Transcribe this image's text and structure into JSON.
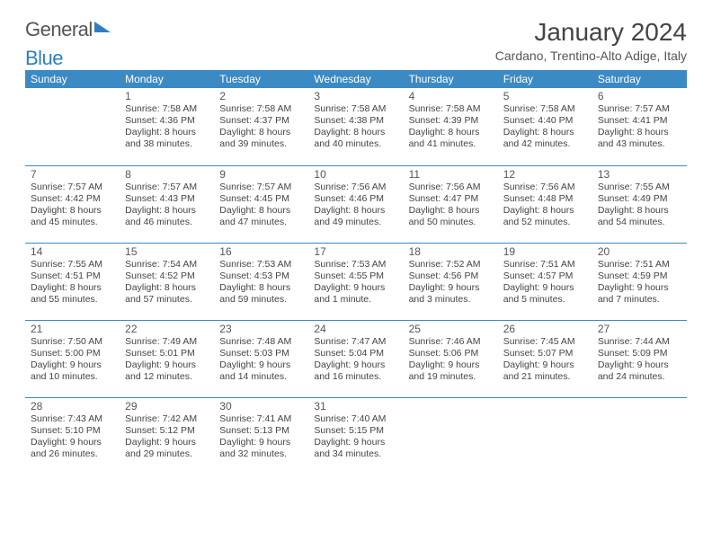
{
  "logo": {
    "part1": "General",
    "part2": "Blue"
  },
  "title": "January 2024",
  "location": "Cardano, Trentino-Alto Adige, Italy",
  "header_bg": "#3b8ac4",
  "header_fg": "#ffffff",
  "border_color": "#3b8ac4",
  "text_color": "#444444",
  "daynames": [
    "Sunday",
    "Monday",
    "Tuesday",
    "Wednesday",
    "Thursday",
    "Friday",
    "Saturday"
  ],
  "weeks": [
    [
      null,
      {
        "n": "1",
        "sr": "Sunrise: 7:58 AM",
        "ss": "Sunset: 4:36 PM",
        "d1": "Daylight: 8 hours",
        "d2": "and 38 minutes."
      },
      {
        "n": "2",
        "sr": "Sunrise: 7:58 AM",
        "ss": "Sunset: 4:37 PM",
        "d1": "Daylight: 8 hours",
        "d2": "and 39 minutes."
      },
      {
        "n": "3",
        "sr": "Sunrise: 7:58 AM",
        "ss": "Sunset: 4:38 PM",
        "d1": "Daylight: 8 hours",
        "d2": "and 40 minutes."
      },
      {
        "n": "4",
        "sr": "Sunrise: 7:58 AM",
        "ss": "Sunset: 4:39 PM",
        "d1": "Daylight: 8 hours",
        "d2": "and 41 minutes."
      },
      {
        "n": "5",
        "sr": "Sunrise: 7:58 AM",
        "ss": "Sunset: 4:40 PM",
        "d1": "Daylight: 8 hours",
        "d2": "and 42 minutes."
      },
      {
        "n": "6",
        "sr": "Sunrise: 7:57 AM",
        "ss": "Sunset: 4:41 PM",
        "d1": "Daylight: 8 hours",
        "d2": "and 43 minutes."
      }
    ],
    [
      {
        "n": "7",
        "sr": "Sunrise: 7:57 AM",
        "ss": "Sunset: 4:42 PM",
        "d1": "Daylight: 8 hours",
        "d2": "and 45 minutes."
      },
      {
        "n": "8",
        "sr": "Sunrise: 7:57 AM",
        "ss": "Sunset: 4:43 PM",
        "d1": "Daylight: 8 hours",
        "d2": "and 46 minutes."
      },
      {
        "n": "9",
        "sr": "Sunrise: 7:57 AM",
        "ss": "Sunset: 4:45 PM",
        "d1": "Daylight: 8 hours",
        "d2": "and 47 minutes."
      },
      {
        "n": "10",
        "sr": "Sunrise: 7:56 AM",
        "ss": "Sunset: 4:46 PM",
        "d1": "Daylight: 8 hours",
        "d2": "and 49 minutes."
      },
      {
        "n": "11",
        "sr": "Sunrise: 7:56 AM",
        "ss": "Sunset: 4:47 PM",
        "d1": "Daylight: 8 hours",
        "d2": "and 50 minutes."
      },
      {
        "n": "12",
        "sr": "Sunrise: 7:56 AM",
        "ss": "Sunset: 4:48 PM",
        "d1": "Daylight: 8 hours",
        "d2": "and 52 minutes."
      },
      {
        "n": "13",
        "sr": "Sunrise: 7:55 AM",
        "ss": "Sunset: 4:49 PM",
        "d1": "Daylight: 8 hours",
        "d2": "and 54 minutes."
      }
    ],
    [
      {
        "n": "14",
        "sr": "Sunrise: 7:55 AM",
        "ss": "Sunset: 4:51 PM",
        "d1": "Daylight: 8 hours",
        "d2": "and 55 minutes."
      },
      {
        "n": "15",
        "sr": "Sunrise: 7:54 AM",
        "ss": "Sunset: 4:52 PM",
        "d1": "Daylight: 8 hours",
        "d2": "and 57 minutes."
      },
      {
        "n": "16",
        "sr": "Sunrise: 7:53 AM",
        "ss": "Sunset: 4:53 PM",
        "d1": "Daylight: 8 hours",
        "d2": "and 59 minutes."
      },
      {
        "n": "17",
        "sr": "Sunrise: 7:53 AM",
        "ss": "Sunset: 4:55 PM",
        "d1": "Daylight: 9 hours",
        "d2": "and 1 minute."
      },
      {
        "n": "18",
        "sr": "Sunrise: 7:52 AM",
        "ss": "Sunset: 4:56 PM",
        "d1": "Daylight: 9 hours",
        "d2": "and 3 minutes."
      },
      {
        "n": "19",
        "sr": "Sunrise: 7:51 AM",
        "ss": "Sunset: 4:57 PM",
        "d1": "Daylight: 9 hours",
        "d2": "and 5 minutes."
      },
      {
        "n": "20",
        "sr": "Sunrise: 7:51 AM",
        "ss": "Sunset: 4:59 PM",
        "d1": "Daylight: 9 hours",
        "d2": "and 7 minutes."
      }
    ],
    [
      {
        "n": "21",
        "sr": "Sunrise: 7:50 AM",
        "ss": "Sunset: 5:00 PM",
        "d1": "Daylight: 9 hours",
        "d2": "and 10 minutes."
      },
      {
        "n": "22",
        "sr": "Sunrise: 7:49 AM",
        "ss": "Sunset: 5:01 PM",
        "d1": "Daylight: 9 hours",
        "d2": "and 12 minutes."
      },
      {
        "n": "23",
        "sr": "Sunrise: 7:48 AM",
        "ss": "Sunset: 5:03 PM",
        "d1": "Daylight: 9 hours",
        "d2": "and 14 minutes."
      },
      {
        "n": "24",
        "sr": "Sunrise: 7:47 AM",
        "ss": "Sunset: 5:04 PM",
        "d1": "Daylight: 9 hours",
        "d2": "and 16 minutes."
      },
      {
        "n": "25",
        "sr": "Sunrise: 7:46 AM",
        "ss": "Sunset: 5:06 PM",
        "d1": "Daylight: 9 hours",
        "d2": "and 19 minutes."
      },
      {
        "n": "26",
        "sr": "Sunrise: 7:45 AM",
        "ss": "Sunset: 5:07 PM",
        "d1": "Daylight: 9 hours",
        "d2": "and 21 minutes."
      },
      {
        "n": "27",
        "sr": "Sunrise: 7:44 AM",
        "ss": "Sunset: 5:09 PM",
        "d1": "Daylight: 9 hours",
        "d2": "and 24 minutes."
      }
    ],
    [
      {
        "n": "28",
        "sr": "Sunrise: 7:43 AM",
        "ss": "Sunset: 5:10 PM",
        "d1": "Daylight: 9 hours",
        "d2": "and 26 minutes."
      },
      {
        "n": "29",
        "sr": "Sunrise: 7:42 AM",
        "ss": "Sunset: 5:12 PM",
        "d1": "Daylight: 9 hours",
        "d2": "and 29 minutes."
      },
      {
        "n": "30",
        "sr": "Sunrise: 7:41 AM",
        "ss": "Sunset: 5:13 PM",
        "d1": "Daylight: 9 hours",
        "d2": "and 32 minutes."
      },
      {
        "n": "31",
        "sr": "Sunrise: 7:40 AM",
        "ss": "Sunset: 5:15 PM",
        "d1": "Daylight: 9 hours",
        "d2": "and 34 minutes."
      },
      null,
      null,
      null
    ]
  ]
}
